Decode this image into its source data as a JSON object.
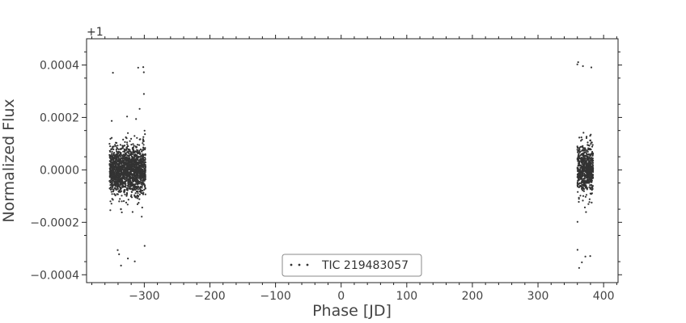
{
  "chart_data": {
    "type": "scatter",
    "title": "",
    "xlabel": "Phase [JD]",
    "ylabel": "Normalized Flux",
    "y_offset_label": "+1",
    "xlim": [
      -388,
      422
    ],
    "ylim": [
      -0.00043,
      0.0005
    ],
    "xticks": [
      -300,
      -200,
      -100,
      0,
      100,
      200,
      300,
      400
    ],
    "xtick_labels": [
      "−300",
      "−200",
      "−100",
      "0",
      "100",
      "200",
      "300",
      "400"
    ],
    "yticks": [
      -0.0004,
      -0.0002,
      0.0,
      0.0002,
      0.0004
    ],
    "ytick_labels": [
      "−0.0004",
      "−0.0002",
      "0.0000",
      "0.0002",
      "0.0004"
    ],
    "grid": false,
    "legend_position": "bottom-center",
    "marker_color": "#333333",
    "series": [
      {
        "name": "TIC 219483057",
        "clusters": [
          {
            "x_range": [
              -353,
              -298
            ],
            "y_center": 0.0,
            "y_core_half_width": 9e-05,
            "y_extremes": [
              -0.00039,
              0.00045
            ]
          },
          {
            "x_range": [
              360,
              384
            ],
            "y_center": 0.0,
            "y_core_half_width": 9e-05,
            "y_extremes": [
              -0.00039,
              0.00046
            ]
          }
        ]
      }
    ]
  }
}
